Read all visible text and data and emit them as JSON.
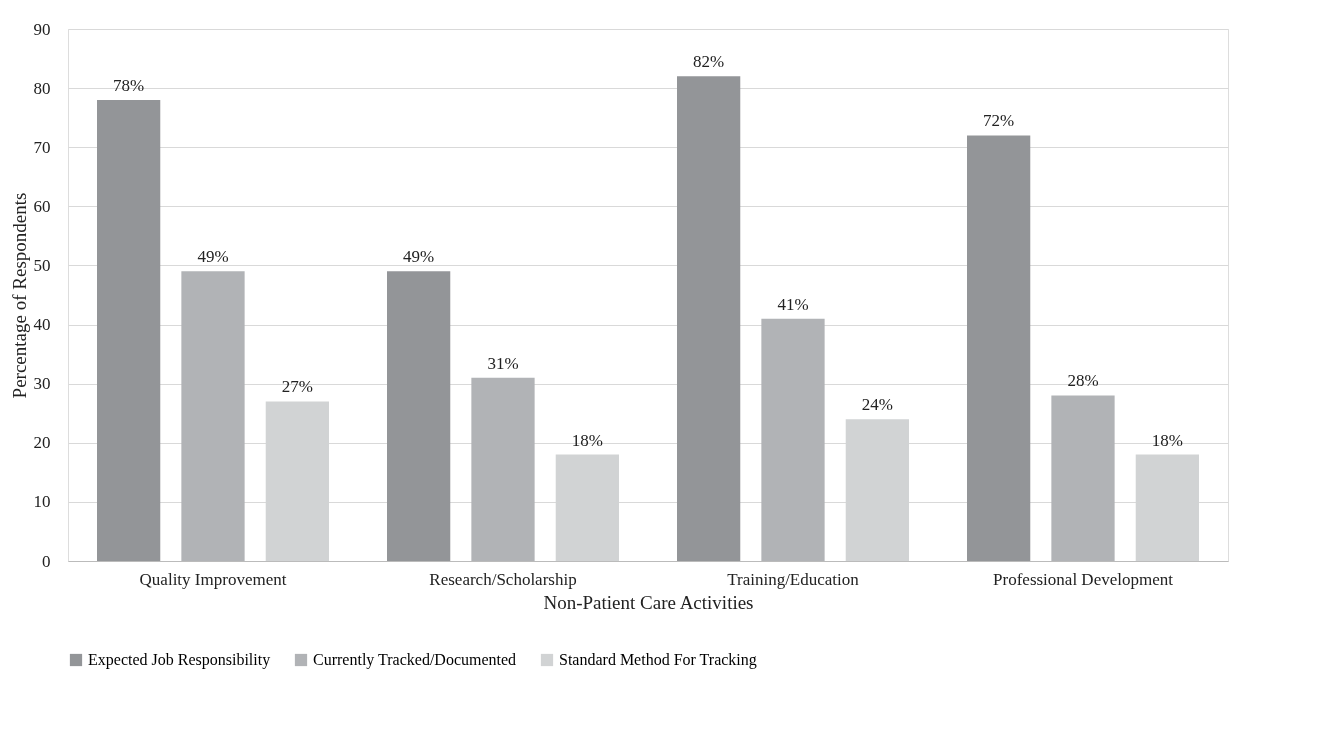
{
  "chart_data": {
    "type": "bar",
    "xlabel": "Non-Patient Care Activities",
    "ylabel": "Percentage of Respondents",
    "categories": [
      "Quality Improvement",
      "Research/Scholarship",
      "Training/Education",
      "Professional Development"
    ],
    "series": [
      {
        "name": "Expected Job Responsibility",
        "color": "#939598",
        "values": [
          78,
          49,
          82,
          72
        ],
        "value_labels": [
          "78%",
          "49%",
          "82%",
          "72%"
        ]
      },
      {
        "name": "Currently Tracked/Documented",
        "color": "#b1b3b6",
        "values": [
          49,
          31,
          41,
          28
        ],
        "value_labels": [
          "49%",
          "31%",
          "41%",
          "28%"
        ]
      },
      {
        "name": "Standard Method For Tracking",
        "color": "#d1d3d4",
        "values": [
          27,
          18,
          24,
          18
        ],
        "value_labels": [
          "27%",
          "18%",
          "24%",
          "18%"
        ]
      }
    ],
    "ylim": [
      0,
      90
    ],
    "yticks": [
      0,
      10,
      20,
      30,
      40,
      50,
      60,
      70,
      80,
      90
    ],
    "grid": "y",
    "legend": "bottom"
  }
}
